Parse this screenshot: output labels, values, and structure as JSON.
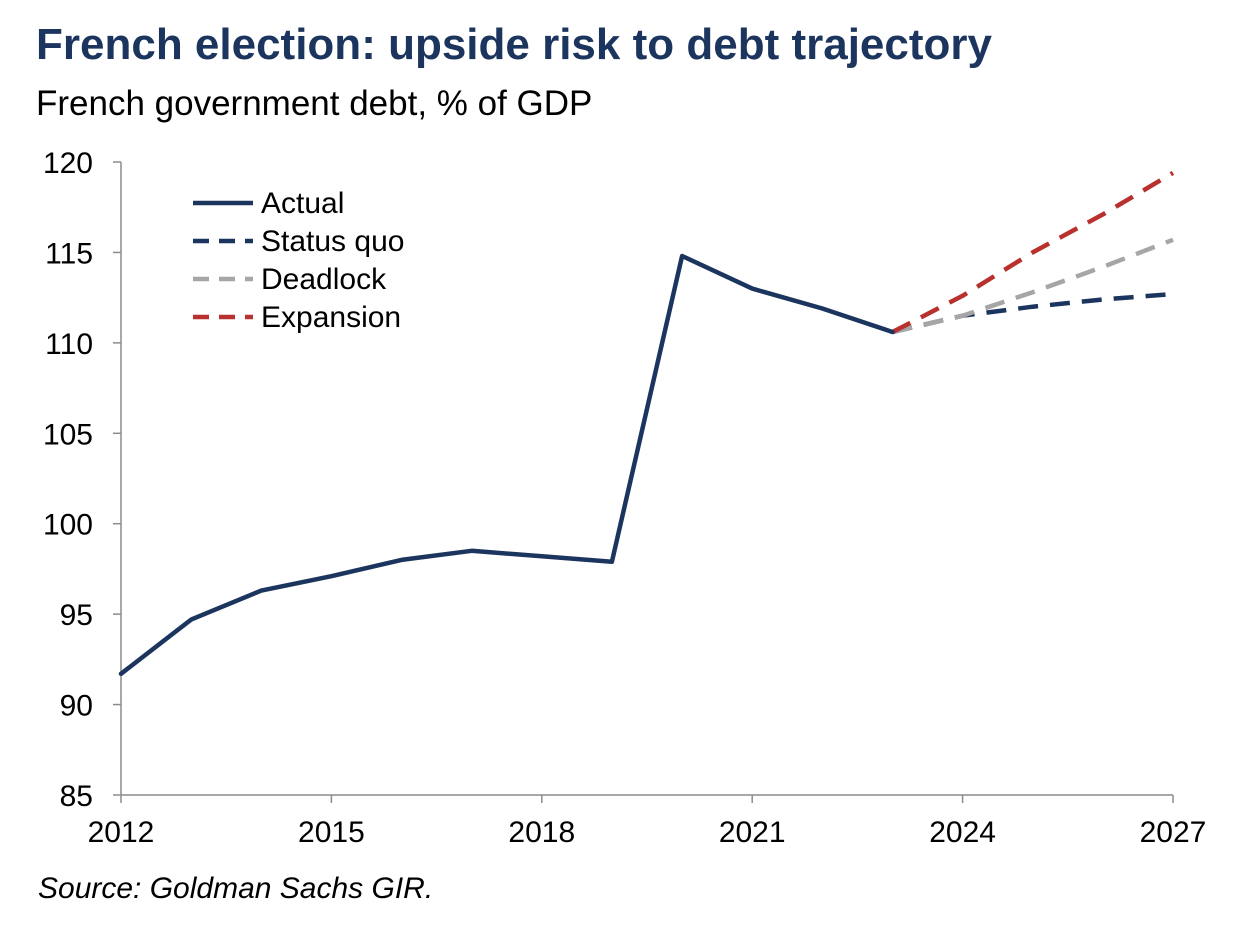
{
  "chart_data": {
    "type": "line",
    "title": "French election: upside risk to debt trajectory",
    "subtitle": "French government debt, % of GDP",
    "source": "Source: Goldman Sachs GIR.",
    "xlabel": "",
    "ylabel": "",
    "xlim": [
      2012,
      2027
    ],
    "ylim": [
      85,
      120
    ],
    "xticks": [
      2012,
      2015,
      2018,
      2021,
      2024,
      2027
    ],
    "yticks": [
      85,
      90,
      95,
      100,
      105,
      110,
      115,
      120
    ],
    "grid": false,
    "legend_position": "top-left",
    "series": [
      {
        "name": "Actual",
        "style": "solid",
        "color": "#1c355e",
        "x": [
          2012,
          2013,
          2014,
          2015,
          2016,
          2017,
          2018,
          2019,
          2020,
          2021,
          2022,
          2023
        ],
        "values": [
          91.7,
          94.7,
          96.3,
          97.1,
          98.0,
          98.5,
          98.2,
          97.9,
          114.8,
          113.0,
          111.9,
          110.6
        ]
      },
      {
        "name": "Status quo",
        "style": "dashed",
        "color": "#1c355e",
        "x": [
          2023,
          2024,
          2025,
          2026,
          2027
        ],
        "values": [
          110.6,
          111.5,
          112.0,
          112.4,
          112.7
        ]
      },
      {
        "name": "Deadlock",
        "style": "dashed",
        "color": "#a6a6a6",
        "x": [
          2023,
          2024,
          2025,
          2026,
          2027
        ],
        "values": [
          110.6,
          111.5,
          112.8,
          114.2,
          115.7
        ]
      },
      {
        "name": "Expansion",
        "style": "dashed",
        "color": "#b8312f",
        "x": [
          2023,
          2024,
          2025,
          2026,
          2027
        ],
        "values": [
          110.6,
          112.6,
          115.0,
          117.1,
          119.4
        ]
      }
    ]
  }
}
